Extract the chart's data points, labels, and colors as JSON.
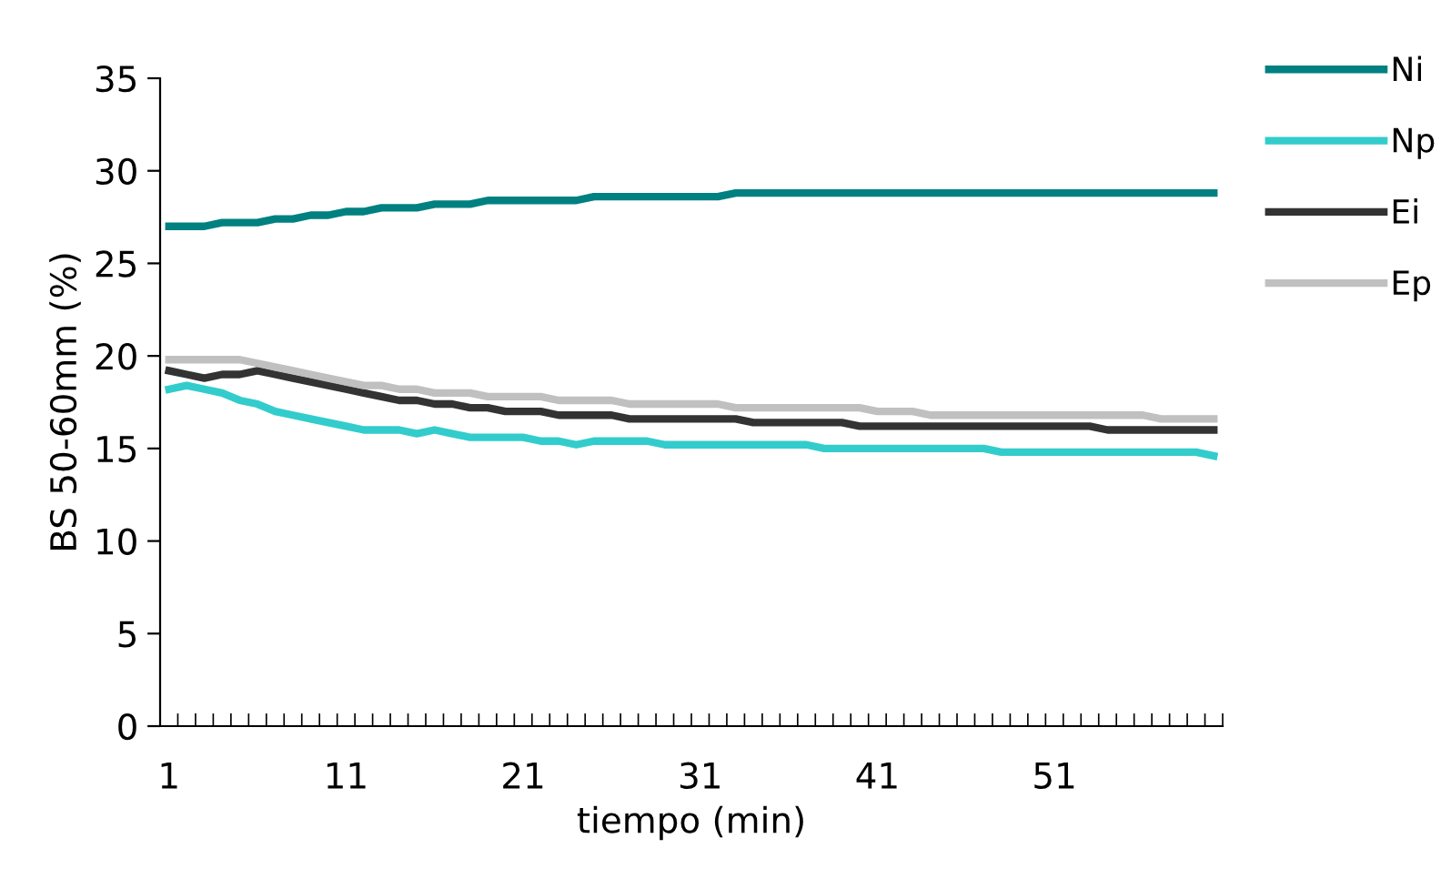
{
  "chart_data": {
    "type": "line",
    "xlabel": "tiempo (min)",
    "ylabel": "BS 50-60mm (%)",
    "categories": [
      "1",
      null,
      null,
      null,
      null,
      null,
      null,
      null,
      null,
      null,
      "11",
      null,
      null,
      null,
      null,
      null,
      null,
      null,
      null,
      null,
      "21",
      null,
      null,
      null,
      null,
      null,
      null,
      null,
      null,
      null,
      "31",
      null,
      null,
      null,
      null,
      null,
      null,
      null,
      null,
      null,
      "41",
      null,
      null,
      null,
      null,
      null,
      null,
      null,
      null,
      null,
      "51",
      null,
      null,
      null,
      null,
      null,
      null,
      null,
      null,
      null
    ],
    "ylim": [
      0,
      35
    ],
    "yticks": [
      0,
      5,
      10,
      15,
      20,
      25,
      30,
      35
    ],
    "grid": false,
    "legend": "right",
    "marker": "none",
    "line_style": "solid",
    "series": [
      {
        "name": "Ni",
        "color": "#008080",
        "values": [
          27.0,
          27.0,
          27.0,
          27.2,
          27.2,
          27.2,
          27.4,
          27.4,
          27.6,
          27.6,
          27.8,
          27.8,
          28.0,
          28.0,
          28.0,
          28.2,
          28.2,
          28.2,
          28.4,
          28.4,
          28.4,
          28.4,
          28.4,
          28.4,
          28.6,
          28.6,
          28.6,
          28.6,
          28.6,
          28.6,
          28.6,
          28.6,
          28.8,
          28.8,
          28.8,
          28.8,
          28.8,
          28.8,
          28.8,
          28.8,
          28.8,
          28.8,
          28.8,
          28.8,
          28.8,
          28.8,
          28.8,
          28.8,
          28.8,
          28.8,
          28.8,
          28.8,
          28.8,
          28.8,
          28.8,
          28.8,
          28.8,
          28.8,
          28.8,
          28.8
        ]
      },
      {
        "name": "Np",
        "color": "#33cccc",
        "values": [
          18.2,
          18.4,
          18.2,
          18.0,
          17.6,
          17.4,
          17.0,
          16.8,
          16.6,
          16.4,
          16.2,
          16.0,
          16.0,
          16.0,
          15.8,
          16.0,
          15.8,
          15.6,
          15.6,
          15.6,
          15.6,
          15.4,
          15.4,
          15.2,
          15.4,
          15.4,
          15.4,
          15.4,
          15.2,
          15.2,
          15.2,
          15.2,
          15.2,
          15.2,
          15.2,
          15.2,
          15.2,
          15.0,
          15.0,
          15.0,
          15.0,
          15.0,
          15.0,
          15.0,
          15.0,
          15.0,
          15.0,
          14.8,
          14.8,
          14.8,
          14.8,
          14.8,
          14.8,
          14.8,
          14.8,
          14.8,
          14.8,
          14.8,
          14.8,
          14.6
        ]
      },
      {
        "name": "Ei",
        "color": "#333333",
        "values": [
          19.2,
          19.0,
          18.8,
          19.0,
          19.0,
          19.2,
          19.0,
          18.8,
          18.6,
          18.4,
          18.2,
          18.0,
          17.8,
          17.6,
          17.6,
          17.4,
          17.4,
          17.2,
          17.2,
          17.0,
          17.0,
          17.0,
          16.8,
          16.8,
          16.8,
          16.8,
          16.6,
          16.6,
          16.6,
          16.6,
          16.6,
          16.6,
          16.6,
          16.4,
          16.4,
          16.4,
          16.4,
          16.4,
          16.4,
          16.2,
          16.2,
          16.2,
          16.2,
          16.2,
          16.2,
          16.2,
          16.2,
          16.2,
          16.2,
          16.2,
          16.2,
          16.2,
          16.2,
          16.0,
          16.0,
          16.0,
          16.0,
          16.0,
          16.0,
          16.0
        ]
      },
      {
        "name": "Ep",
        "color": "#c0c0c0",
        "values": [
          19.8,
          19.8,
          19.8,
          19.8,
          19.8,
          19.6,
          19.4,
          19.2,
          19.0,
          18.8,
          18.6,
          18.4,
          18.4,
          18.2,
          18.2,
          18.0,
          18.0,
          18.0,
          17.8,
          17.8,
          17.8,
          17.8,
          17.6,
          17.6,
          17.6,
          17.6,
          17.4,
          17.4,
          17.4,
          17.4,
          17.4,
          17.4,
          17.2,
          17.2,
          17.2,
          17.2,
          17.2,
          17.2,
          17.2,
          17.2,
          17.0,
          17.0,
          17.0,
          16.8,
          16.8,
          16.8,
          16.8,
          16.8,
          16.8,
          16.8,
          16.8,
          16.8,
          16.8,
          16.8,
          16.8,
          16.8,
          16.6,
          16.6,
          16.6,
          16.6
        ]
      }
    ]
  }
}
